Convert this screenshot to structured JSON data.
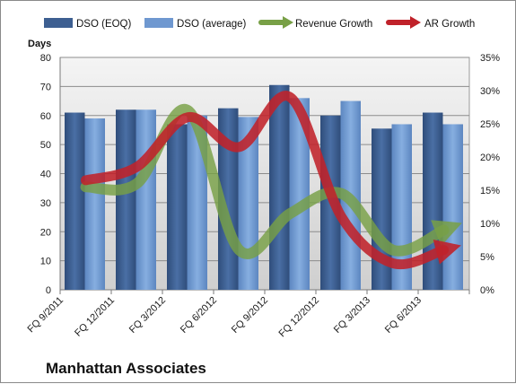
{
  "company": "Manhattan Associates",
  "chart_data": {
    "type": "bar",
    "ylabel": "Days",
    "ylim": [
      0,
      80
    ],
    "y_ticks": [
      "0",
      "10",
      "20",
      "30",
      "40",
      "50",
      "60",
      "70",
      "80"
    ],
    "y2lim": [
      0,
      0.35
    ],
    "y2_ticks": [
      "0%",
      "5%",
      "10%",
      "15%",
      "20%",
      "25%",
      "30%",
      "35%"
    ],
    "categories": [
      "FQ 9/2011",
      "FQ 12/2011",
      "FQ 3/2012",
      "FQ 6/2012",
      "FQ 9/2012",
      "FQ 12/2012",
      "FQ 3/2013",
      "FQ 6/2013"
    ],
    "series": [
      {
        "name": "DSO (EOQ)",
        "type": "bar",
        "axis": "left",
        "color": "#3d5f91",
        "values": [
          61,
          62,
          57,
          62.5,
          70.5,
          60,
          55.5,
          61
        ]
      },
      {
        "name": "DSO (average)",
        "type": "bar",
        "axis": "left",
        "color": "#6f98d0",
        "values": [
          59,
          62,
          60,
          59.5,
          66,
          65,
          57,
          57
        ]
      },
      {
        "name": "Revenue Growth",
        "type": "line",
        "axis": "right",
        "color": "#78a046",
        "values": [
          0.155,
          0.16,
          0.27,
          0.06,
          0.115,
          0.145,
          0.06,
          0.09
        ]
      },
      {
        "name": "AR Growth",
        "type": "line",
        "axis": "right",
        "color": "#c0222a",
        "values": [
          0.165,
          0.185,
          0.26,
          0.215,
          0.29,
          0.11,
          0.04,
          0.06
        ]
      }
    ],
    "grid": "horizontal",
    "legend": "top"
  }
}
